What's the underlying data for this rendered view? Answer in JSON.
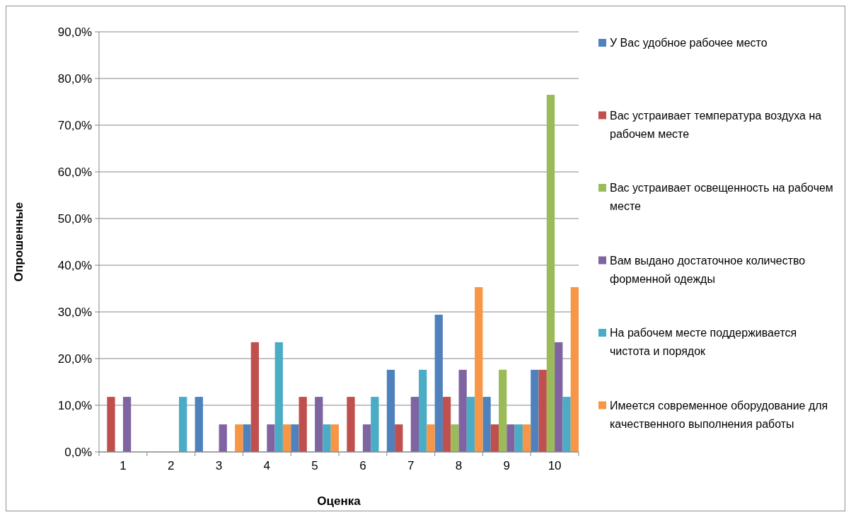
{
  "chart_data": {
    "type": "bar",
    "xlabel": "Оценка",
    "ylabel": "Опрошенные",
    "categories": [
      "1",
      "2",
      "3",
      "4",
      "5",
      "6",
      "7",
      "8",
      "9",
      "10"
    ],
    "series": [
      {
        "name": "У Вас удобное рабочее место",
        "color": "#4f81bd",
        "values": [
          0,
          0,
          11.8,
          5.9,
          5.9,
          0,
          17.6,
          29.4,
          11.8,
          17.6
        ]
      },
      {
        "name": "Вас устраивает температура воздуха на рабочем месте",
        "color": "#c0504d",
        "values": [
          11.8,
          0,
          0,
          23.5,
          11.8,
          11.8,
          5.9,
          11.8,
          5.9,
          17.6
        ]
      },
      {
        "name": "Вас устраивает освещенность на рабочем месте",
        "color": "#9bbb59",
        "values": [
          0,
          0,
          0,
          0,
          0,
          0,
          0,
          5.9,
          17.6,
          76.5
        ]
      },
      {
        "name": "Вам выдано достаточное количество форменной одежды",
        "color": "#8064a2",
        "values": [
          11.8,
          0,
          5.9,
          5.9,
          11.8,
          5.9,
          11.8,
          17.6,
          5.9,
          23.5
        ]
      },
      {
        "name": "На рабочем месте поддерживается чистота и порядок",
        "color": "#4bacc6",
        "values": [
          0,
          11.8,
          0,
          23.5,
          5.9,
          11.8,
          17.6,
          11.8,
          5.9,
          11.8
        ]
      },
      {
        "name": "Имеется современное оборудование для качественного выполнения работы",
        "color": "#f79646",
        "values": [
          0,
          0,
          5.9,
          5.9,
          5.9,
          0,
          5.9,
          35.3,
          5.9,
          35.3
        ]
      }
    ],
    "ylim": [
      0,
      90
    ],
    "yticks": [
      {
        "value": 0,
        "label": "0,0%"
      },
      {
        "value": 10,
        "label": "10,0%"
      },
      {
        "value": 20,
        "label": "20,0%"
      },
      {
        "value": 30,
        "label": "30,0%"
      },
      {
        "value": 40,
        "label": "40,0%"
      },
      {
        "value": 50,
        "label": "50,0%"
      },
      {
        "value": 60,
        "label": "60,0%"
      },
      {
        "value": 70,
        "label": "70,0%"
      },
      {
        "value": 80,
        "label": "80,0%"
      },
      {
        "value": 90,
        "label": "90,0%"
      }
    ],
    "grid": "y",
    "legend": "right"
  }
}
